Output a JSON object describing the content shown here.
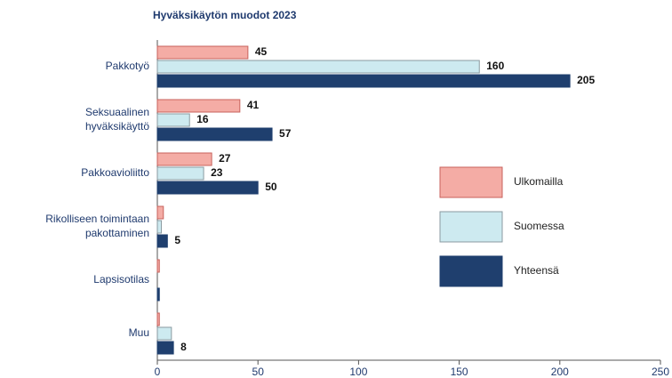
{
  "chart_data": {
    "type": "hbar",
    "title": "Hyväksikäytön muodot 2023",
    "categories": [
      "Pakkotyö",
      "Seksuaalinen\nhyväksikäyttö",
      "Pakkoavioliitto",
      "Rikolliseen toimintaan\npakottaminen",
      "Lapsisotilas",
      "Muu"
    ],
    "series": [
      {
        "name": "Ulkomailla",
        "color": "#f4aca5",
        "values": [
          45,
          41,
          27,
          3,
          1,
          1
        ],
        "value_labels": [
          "45",
          "41",
          "27",
          null,
          null,
          null
        ]
      },
      {
        "name": "Suomessa",
        "color": "#cdeaf0",
        "values": [
          160,
          16,
          23,
          2,
          0,
          7
        ],
        "value_labels": [
          "160",
          "16",
          "23",
          null,
          null,
          null
        ]
      },
      {
        "name": "Yhteensä",
        "color": "#1f3f6e",
        "values": [
          205,
          57,
          50,
          5,
          1,
          8
        ],
        "value_labels": [
          "205",
          "57",
          "50",
          "5",
          null,
          "8"
        ]
      }
    ],
    "xlim": [
      0,
      250
    ],
    "xticks": [
      0,
      50,
      100,
      150,
      200,
      250
    ],
    "legend": "right"
  }
}
